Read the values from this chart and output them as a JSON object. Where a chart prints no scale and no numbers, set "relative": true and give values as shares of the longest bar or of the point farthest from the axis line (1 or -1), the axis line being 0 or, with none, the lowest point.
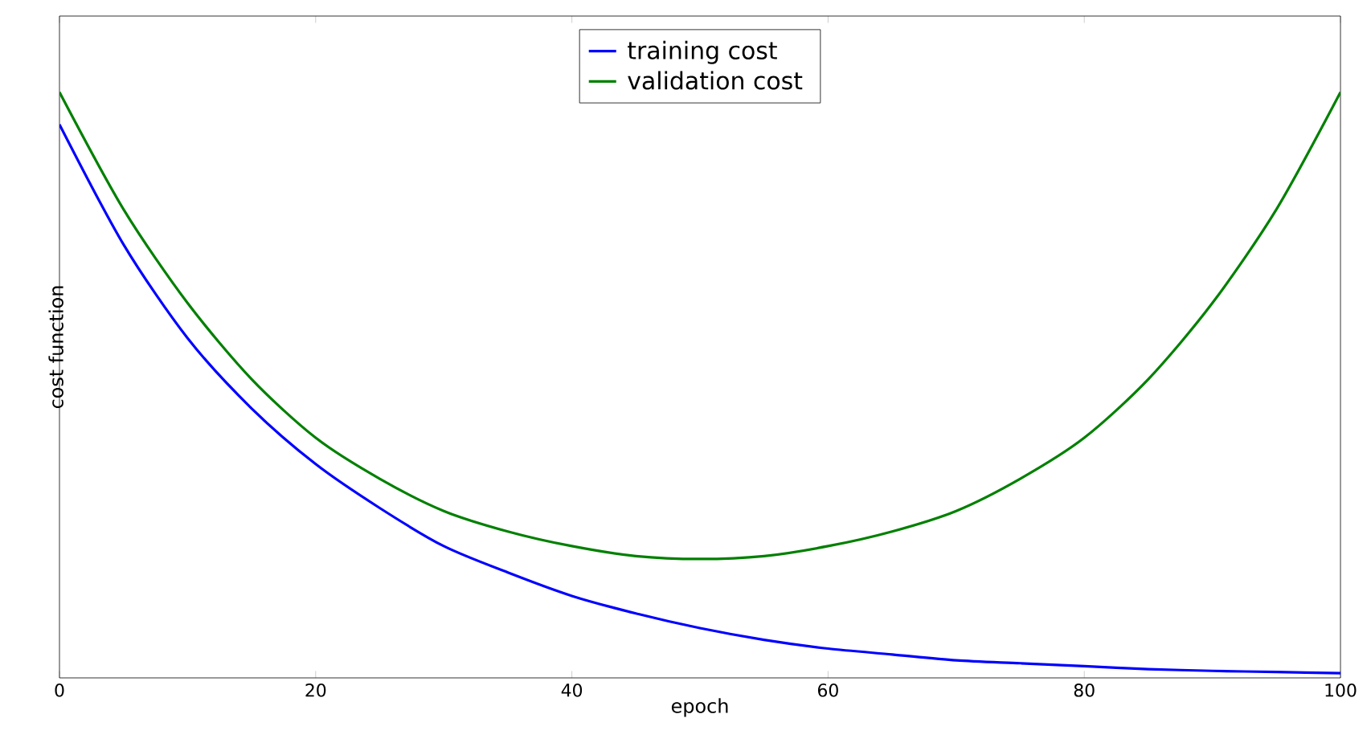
{
  "chart_data": {
    "type": "line",
    "xlabel": "epoch",
    "ylabel": "cost function",
    "relative": true,
    "xlim": [
      0,
      100
    ],
    "xticks": [
      0,
      20,
      40,
      60,
      80,
      100
    ],
    "legend": "top",
    "grid": false,
    "marker": "none",
    "line_style": "solid",
    "x": [
      0,
      5,
      10,
      15,
      20,
      25,
      30,
      35,
      40,
      45,
      50,
      55,
      60,
      65,
      70,
      75,
      80,
      85,
      90,
      95,
      100
    ],
    "series": [
      {
        "name": "training cost",
        "color": "#0000ff",
        "values": [
          0.945,
          0.74,
          0.58,
          0.46,
          0.365,
          0.29,
          0.225,
          0.18,
          0.14,
          0.11,
          0.085,
          0.065,
          0.05,
          0.04,
          0.03,
          0.025,
          0.02,
          0.015,
          0.012,
          0.01,
          0.008
        ]
      },
      {
        "name": "validation cost",
        "color": "#008000",
        "values": [
          1.0,
          0.8,
          0.64,
          0.51,
          0.41,
          0.34,
          0.285,
          0.25,
          0.225,
          0.208,
          0.203,
          0.208,
          0.225,
          0.25,
          0.285,
          0.34,
          0.41,
          0.51,
          0.64,
          0.8,
          1.0
        ]
      }
    ]
  }
}
